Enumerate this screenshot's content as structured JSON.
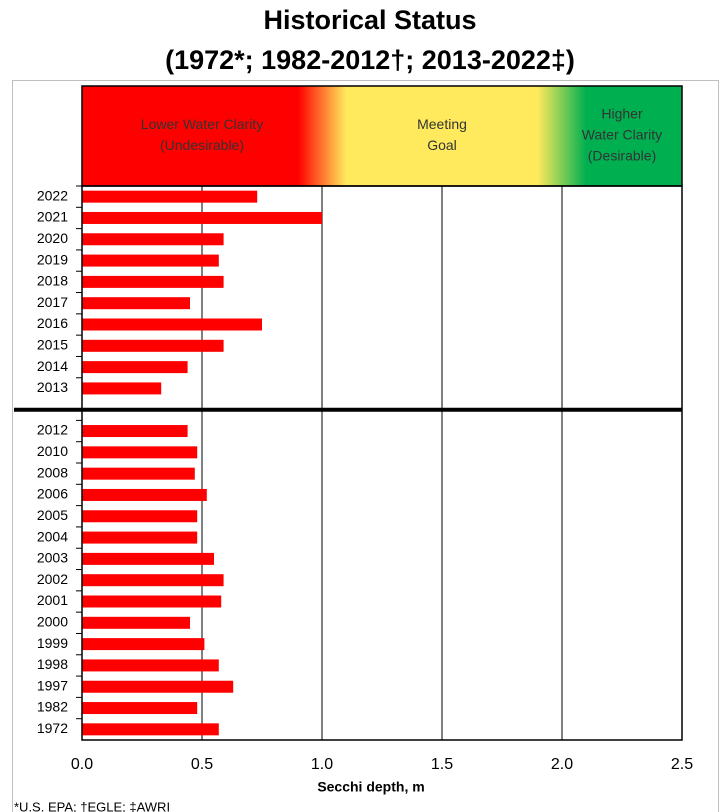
{
  "chart_data": {
    "type": "bar",
    "orientation": "horizontal",
    "title": "Historical Status",
    "subtitle": "(1972*; 1982-2012†; 2013-2022‡)",
    "x_label": "Secchi depth, m",
    "footnote": "*U.S. EPA; †EGLE; ‡AWRI",
    "color": "#ff0000",
    "categories": [
      "2022",
      "2021",
      "2020",
      "2019",
      "2018",
      "2017",
      "2016",
      "2015",
      "2014",
      "2013",
      null,
      "2012",
      "2010",
      "2008",
      "2006",
      "2005",
      "2004",
      "2003",
      "2002",
      "2001",
      "2000",
      "1999",
      "1998",
      "1997",
      "1982",
      "1972"
    ],
    "values": [
      0.73,
      1.0,
      0.59,
      0.57,
      0.59,
      0.45,
      0.75,
      0.59,
      0.44,
      0.33,
      null,
      0.44,
      0.48,
      0.47,
      0.52,
      0.48,
      0.48,
      0.55,
      0.59,
      0.58,
      0.45,
      0.51,
      0.57,
      0.63,
      0.48,
      0.57
    ],
    "xlim": [
      0,
      2.5
    ],
    "xticks": [
      {
        "value": 0,
        "label": "0.0"
      },
      0.5,
      {
        "value": 1,
        "label": "1.0"
      },
      1.5,
      {
        "value": 2,
        "label": "2.0"
      },
      2.5
    ],
    "grid": true,
    "bands": [
      {
        "from": 0,
        "to": 1,
        "color": "#ff0000",
        "label": [
          "Lower Water Clarity",
          "(Undesirable)"
        ]
      },
      {
        "from": 1,
        "to": 2,
        "color": "#ffe95c",
        "label": [
          "Meeting",
          "Goal"
        ]
      },
      {
        "from": 2,
        "to": 2.5,
        "color": "#00b050",
        "label": [
          "Higher",
          "Water Clarity",
          "(Desirable)"
        ]
      }
    ]
  }
}
